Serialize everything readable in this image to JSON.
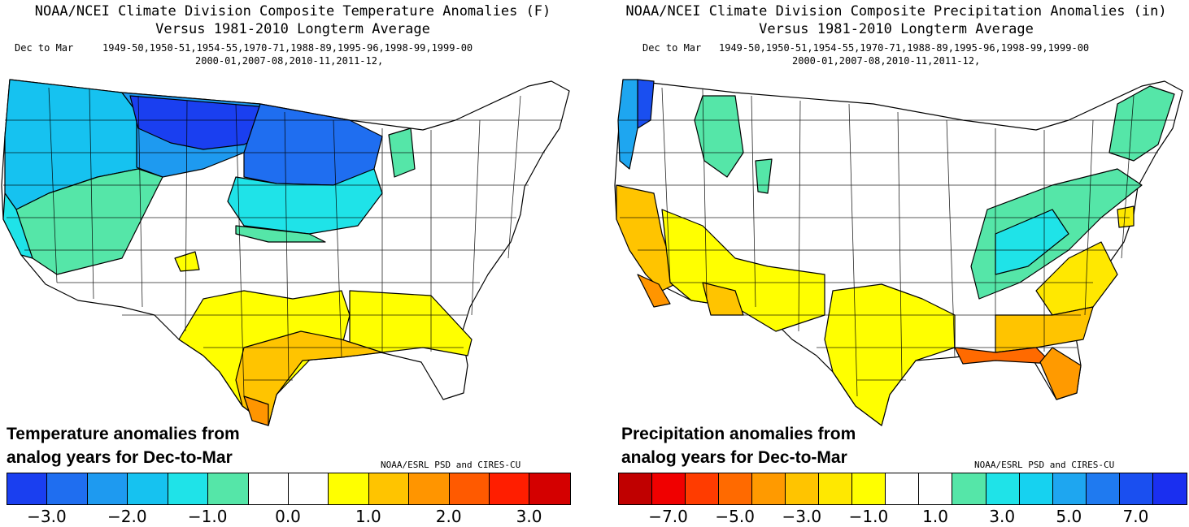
{
  "temperature_panel": {
    "title_line1": "NOAA/NCEI Climate Division Composite Temperature Anomalies (F)",
    "title_line2": "Versus 1981-2010 Longterm Average",
    "period_label": "Dec to Mar",
    "years_line1": "1949-50,1950-51,1954-55,1970-71,1988-89,1995-96,1998-99,1999-00",
    "years_line2": "2000-01,2007-08,2010-11,2011-12,",
    "caption_line1": "Temperature anomalies from",
    "caption_line2": "analog years for Dec-to-Mar",
    "credit": "NOAA/ESRL PSD and CIRES-CU",
    "legend_colors": [
      "#1a3ff0",
      "#1f6ef0",
      "#1e9af0",
      "#16c2f0",
      "#1fe3e8",
      "#55e6a8",
      "#ffffff",
      "#ffffff",
      "#ffff00",
      "#ffc400",
      "#ff9500",
      "#ff5a00",
      "#ff1e00",
      "#d40000"
    ],
    "legend_ticks": [
      "−3.0",
      "−2.0",
      "−1.0",
      "0.0",
      "1.0",
      "2.0",
      "3.0"
    ]
  },
  "precipitation_panel": {
    "title_line1": "NOAA/NCEI Climate Division Composite Precipitation Anomalies (in)",
    "title_line2": "Versus 1981-2010 Longterm Average",
    "period_label": "Dec to Mar",
    "years_line1": "1949-50,1950-51,1954-55,1970-71,1988-89,1995-96,1998-99,1999-00",
    "years_line2": "2000-01,2007-08,2010-11,2011-12,",
    "caption_line1": "Precipitation anomalies from",
    "caption_line2": "analog years for Dec-to-Mar",
    "credit": "NOAA/ESRL PSD and CIRES-CU",
    "legend_colors": [
      "#c00000",
      "#f00000",
      "#ff3c00",
      "#ff6a00",
      "#ff9a00",
      "#ffc400",
      "#ffe800",
      "#ffff00",
      "#ffffff",
      "#ffffff",
      "#55e6a8",
      "#1fe3e8",
      "#16d2f0",
      "#1ea6f0",
      "#1f7af0",
      "#1a4ff0",
      "#1a2ff0"
    ],
    "legend_ticks": [
      "−7.0",
      "−5.0",
      "−3.0",
      "−1.0",
      "1.0",
      "3.0",
      "5.0",
      "7.0"
    ]
  }
}
